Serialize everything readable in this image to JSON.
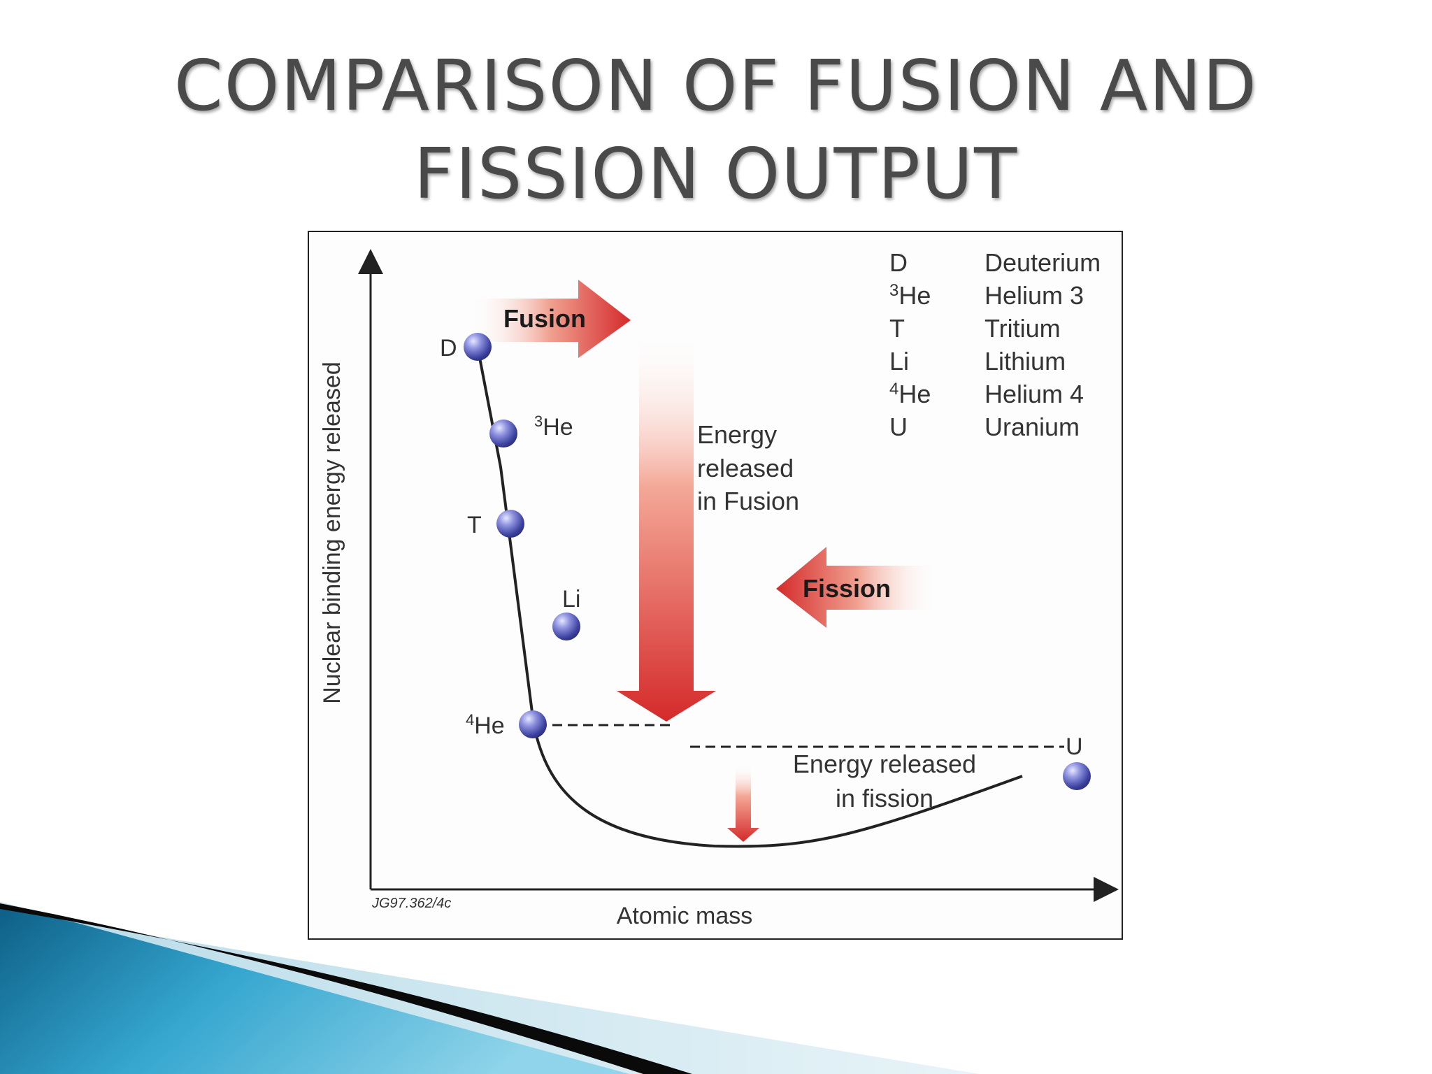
{
  "title": {
    "line1": "COMPARISON OF FUSION AND",
    "line2": "FISSION OUTPUT"
  },
  "diagram": {
    "y_axis_label": "Nuclear binding energy released",
    "x_axis_label": "Atomic mass",
    "ref_code": "JG97.362/4c",
    "fusion_label": "Fusion",
    "fission_label": "Fission",
    "fusion_energy_text": [
      "Energy",
      "released",
      "in Fusion"
    ],
    "fission_energy_text": [
      "Energy released",
      "in fission"
    ],
    "points": [
      {
        "label": "D"
      },
      {
        "label_sup": "3",
        "label": "He"
      },
      {
        "label": "T"
      },
      {
        "label": "Li"
      },
      {
        "label_sup": "4",
        "label": "He"
      },
      {
        "label": "U"
      }
    ],
    "legend": [
      {
        "symbol": "D",
        "name": "Deuterium"
      },
      {
        "symbol_sup": "3",
        "symbol": "He",
        "name": "Helium 3"
      },
      {
        "symbol": "T",
        "name": "Tritium"
      },
      {
        "symbol": "Li",
        "name": "Lithium"
      },
      {
        "symbol_sup": "4",
        "symbol": "He",
        "name": "Helium 4"
      },
      {
        "symbol": "U",
        "name": "Uranium"
      }
    ]
  },
  "colors": {
    "arrow_red": "#d42a2a",
    "sphere_blue": "#4a4fb0",
    "swoosh_teal": "#1d88b0"
  }
}
